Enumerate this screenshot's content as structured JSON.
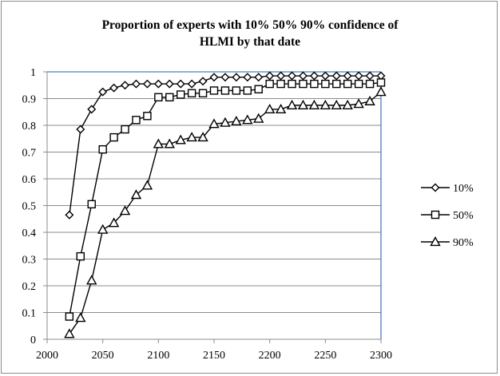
{
  "chart_data": {
    "type": "line",
    "title_lines": [
      "Proportion of experts with 10% 50% 90% confidence of",
      "HLMI by that date"
    ],
    "xlabel": "",
    "ylabel": "",
    "xlim": [
      2000,
      2300
    ],
    "ylim": [
      0,
      1
    ],
    "x_ticks": [
      2000,
      2050,
      2100,
      2150,
      2200,
      2250,
      2300
    ],
    "y_ticks": [
      0,
      0.1,
      0.2,
      0.3,
      0.4,
      0.5,
      0.6,
      0.7,
      0.8,
      0.9,
      1
    ],
    "x_tick_labels": [
      "2000",
      "2050",
      "2100",
      "2150",
      "2200",
      "2250",
      "2300"
    ],
    "y_tick_labels": [
      "0",
      "0.1",
      "0.2",
      "0.3",
      "0.4",
      "0.5",
      "0.6",
      "0.7",
      "0.8",
      "0.9",
      "1"
    ],
    "grid": "horizontal",
    "legend_position": "right",
    "x": [
      2020,
      2030,
      2040,
      2050,
      2060,
      2070,
      2080,
      2090,
      2100,
      2110,
      2120,
      2130,
      2140,
      2150,
      2160,
      2170,
      2180,
      2190,
      2200,
      2210,
      2220,
      2230,
      2240,
      2250,
      2260,
      2270,
      2280,
      2290,
      2300
    ],
    "series": [
      {
        "name": "10%",
        "marker": "diamond",
        "values": [
          0.465,
          0.785,
          0.86,
          0.925,
          0.94,
          0.95,
          0.955,
          0.955,
          0.955,
          0.955,
          0.955,
          0.955,
          0.965,
          0.98,
          0.98,
          0.98,
          0.98,
          0.98,
          0.985,
          0.985,
          0.985,
          0.985,
          0.985,
          0.985,
          0.985,
          0.985,
          0.985,
          0.985,
          0.985
        ]
      },
      {
        "name": "50%",
        "marker": "square",
        "values": [
          0.085,
          0.31,
          0.505,
          0.71,
          0.755,
          0.785,
          0.82,
          0.835,
          0.905,
          0.905,
          0.915,
          0.92,
          0.92,
          0.93,
          0.93,
          0.93,
          0.93,
          0.935,
          0.955,
          0.955,
          0.955,
          0.955,
          0.955,
          0.955,
          0.955,
          0.955,
          0.955,
          0.955,
          0.96
        ]
      },
      {
        "name": "90%",
        "marker": "triangle",
        "values": [
          0.02,
          0.08,
          0.22,
          0.41,
          0.435,
          0.48,
          0.54,
          0.575,
          0.73,
          0.73,
          0.745,
          0.755,
          0.755,
          0.805,
          0.81,
          0.815,
          0.82,
          0.825,
          0.86,
          0.86,
          0.875,
          0.875,
          0.875,
          0.875,
          0.875,
          0.875,
          0.88,
          0.89,
          0.925
        ]
      }
    ],
    "colors": {
      "line": "#000000",
      "grid": "#8c8c8c",
      "axis": "#8c8c8c",
      "plot_border": "#4a7ebb",
      "marker_fill": "#ffffff"
    }
  }
}
